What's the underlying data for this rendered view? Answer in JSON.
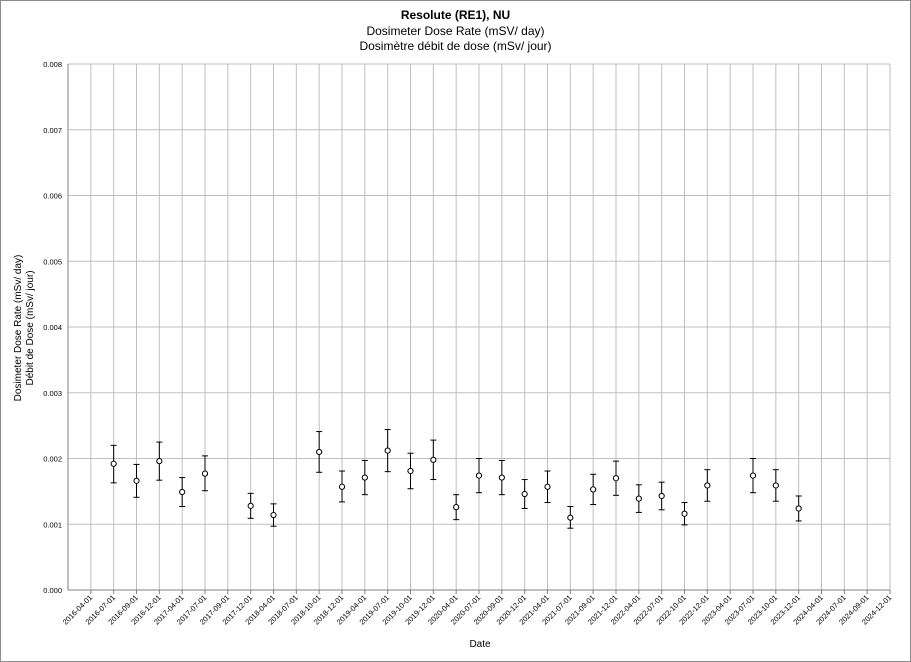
{
  "chart_data": {
    "type": "scatter",
    "title": "Resolute (RE1), NU",
    "subtitle": "Dosimeter Dose Rate (mSV/ day)",
    "subtitle_fr": "Dosimètre débit de dose (mSv/ jour)",
    "xlabel": "Date",
    "ylabel": "Dosimeter Dose Rate (mSv/ day)",
    "ylabel_fr": "Débit de Dose (mSv/ jour)",
    "ylim": [
      0,
      0.008
    ],
    "y_ticks": [
      "0.000",
      "0.001",
      "0.002",
      "0.003",
      "0.004",
      "0.005",
      "0.006",
      "0.007",
      "0.008"
    ],
    "x_ticks": [
      "2016-04-01",
      "2016-07-01",
      "2016-09-01",
      "2016-12-01",
      "2017-04-01",
      "2017-07-01",
      "2017-09-01",
      "2017-12-01",
      "2018-04-01",
      "2018-07-01",
      "2018-10-01",
      "2018-12-01",
      "2019-04-01",
      "2019-07-01",
      "2019-10-01",
      "2019-12-01",
      "2020-04-01",
      "2020-07-01",
      "2020-09-01",
      "2020-12-01",
      "2021-04-01",
      "2021-07-01",
      "2021-09-01",
      "2021-12-01",
      "2022-04-01",
      "2022-07-01",
      "2022-10-01",
      "2022-12-01",
      "2023-04-01",
      "2023-07-01",
      "2023-10-01",
      "2023-12-01",
      "2024-04-01",
      "2024-07-01",
      "2024-09-01",
      "2024-12-01"
    ],
    "grid": true,
    "error_bars": true,
    "points": [
      {
        "x": "2016-07-01",
        "y": 0.00192,
        "lo": 0.00163,
        "hi": 0.0022
      },
      {
        "x": "2016-09-01",
        "y": 0.00166,
        "lo": 0.00141,
        "hi": 0.00191
      },
      {
        "x": "2016-12-01",
        "y": 0.00196,
        "lo": 0.00167,
        "hi": 0.00225
      },
      {
        "x": "2017-04-01",
        "y": 0.00149,
        "lo": 0.00127,
        "hi": 0.00171
      },
      {
        "x": "2017-07-01",
        "y": 0.00177,
        "lo": 0.00151,
        "hi": 0.00204
      },
      {
        "x": "2017-12-01",
        "y": 0.00128,
        "lo": 0.00109,
        "hi": 0.00147
      },
      {
        "x": "2018-04-01",
        "y": 0.00114,
        "lo": 0.00097,
        "hi": 0.00131
      },
      {
        "x": "2018-10-01",
        "y": 0.0021,
        "lo": 0.00179,
        "hi": 0.00241
      },
      {
        "x": "2018-12-01",
        "y": 0.00157,
        "lo": 0.00134,
        "hi": 0.00181
      },
      {
        "x": "2019-04-01",
        "y": 0.00171,
        "lo": 0.00145,
        "hi": 0.00197
      },
      {
        "x": "2019-07-01",
        "y": 0.00212,
        "lo": 0.0018,
        "hi": 0.00244
      },
      {
        "x": "2019-10-01",
        "y": 0.00181,
        "lo": 0.00154,
        "hi": 0.00208
      },
      {
        "x": "2019-12-01",
        "y": 0.00198,
        "lo": 0.00168,
        "hi": 0.00228
      },
      {
        "x": "2020-04-01",
        "y": 0.00126,
        "lo": 0.00107,
        "hi": 0.00145
      },
      {
        "x": "2020-07-01",
        "y": 0.00174,
        "lo": 0.00148,
        "hi": 0.002
      },
      {
        "x": "2020-09-01",
        "y": 0.00171,
        "lo": 0.00145,
        "hi": 0.00197
      },
      {
        "x": "2020-12-01",
        "y": 0.00146,
        "lo": 0.00124,
        "hi": 0.00168
      },
      {
        "x": "2021-04-01",
        "y": 0.00157,
        "lo": 0.00133,
        "hi": 0.00181
      },
      {
        "x": "2021-07-01",
        "y": 0.0011,
        "lo": 0.00094,
        "hi": 0.00127
      },
      {
        "x": "2021-09-01",
        "y": 0.00153,
        "lo": 0.0013,
        "hi": 0.00176
      },
      {
        "x": "2021-12-01",
        "y": 0.0017,
        "lo": 0.00144,
        "hi": 0.00196
      },
      {
        "x": "2022-04-01",
        "y": 0.00139,
        "lo": 0.00118,
        "hi": 0.0016
      },
      {
        "x": "2022-07-01",
        "y": 0.00143,
        "lo": 0.00122,
        "hi": 0.00164
      },
      {
        "x": "2022-10-01",
        "y": 0.00116,
        "lo": 0.00099,
        "hi": 0.00133
      },
      {
        "x": "2022-12-01",
        "y": 0.00159,
        "lo": 0.00135,
        "hi": 0.00183
      },
      {
        "x": "2023-07-01",
        "y": 0.00174,
        "lo": 0.00148,
        "hi": 0.002
      },
      {
        "x": "2023-10-01",
        "y": 0.00159,
        "lo": 0.00135,
        "hi": 0.00183
      },
      {
        "x": "2023-12-01",
        "y": 0.00124,
        "lo": 0.00105,
        "hi": 0.00143
      }
    ],
    "colors": {
      "grid": "#bfbfbf",
      "marker": "#000000",
      "marker_fill": "#ffffff",
      "axis": "#808080"
    }
  }
}
